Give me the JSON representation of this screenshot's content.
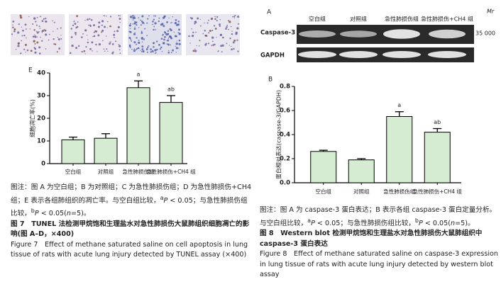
{
  "chart_data": [
    {
      "type": "bar",
      "panel": "E",
      "ylabel": "细胞凋亡率(%)",
      "categories": [
        "空白组",
        "对照组",
        "急性肺损伤组",
        "急性肺损伤+CH4 组"
      ],
      "values": [
        10.5,
        11.2,
        33.5,
        27
      ],
      "errors": [
        1.2,
        2,
        3,
        3
      ],
      "bar_labels": [
        null,
        null,
        "a",
        "ab"
      ],
      "color": "#d6ecd2",
      "ylim": [
        0,
        40
      ],
      "yticks": [
        0,
        10,
        20,
        30,
        40
      ]
    },
    {
      "type": "bar",
      "panel": "B",
      "ylabel": "蛋白相对表达(caspase-3/GAPDH)",
      "categories": [
        "空白组",
        "对照组",
        "急性肺损伤组",
        "急性肺损伤+CH4 组"
      ],
      "values": [
        0.26,
        0.19,
        0.55,
        0.42
      ],
      "errors": [
        0.01,
        0.01,
        0.04,
        0.03
      ],
      "bar_labels": [
        null,
        null,
        "a",
        "ab"
      ],
      "color": "#d6ecd2",
      "ylim": [
        0,
        0.8
      ],
      "yticks": [
        {
          "value": 0,
          "label": "0.0"
        },
        0.2,
        0.4,
        0.6,
        0.8
      ]
    }
  ],
  "blot": {
    "panel": "A",
    "groups": [
      "空白组",
      "对照组",
      "急性肺损伤组",
      "急性肺损伤+CH4 组"
    ],
    "mr": "Mr",
    "rows": [
      "Caspase-3",
      "GAPDH"
    ],
    "marker": "35 000"
  },
  "figure7": {
    "note": [
      "图注：图 A 为空白组；B 为对照组；C 为急性肺损伤组；D 为急性肺损伤+CH4 组；E 表示各组肺组织的凋亡率。与空白组比较，",
      "a",
      "P",
      " < 0.05；与急性肺损伤组比较，",
      "b",
      "P",
      " < 0.05(",
      "n",
      "=5)。"
    ],
    "title_cn": "图 7　TUNEL 法检测甲烷饱和生理盐水对急性肺损伤大鼠肺组织细胞凋亡的影响(图 A–D，×400)",
    "title_en": "Figure 7　Effect of methane saturated saline on cell apoptosis in lung tissue of rats with acute lung injury detected by TUNEL assay (×400)"
  },
  "figure8": {
    "note": [
      "图注：图 A 为 caspase-3 蛋白表达；B 表示各组 caspase-3 蛋白定量分析。与空白组比较，",
      "a",
      "P",
      " < 0.05；与急性肺损伤组比较，",
      "b",
      "P",
      " < 0.05(",
      "n",
      "=5)。"
    ],
    "title_cn": "图 8　Western blot 检测甲烷饱和生理盐水对急性肺损伤大鼠肺组织中 caspase-3 蛋白表达",
    "title_en": "Figure 8　Effect of methane saturated saline on caspase-3 expression in lung tissue of rats with acute lung injury detected by western blot assay"
  }
}
